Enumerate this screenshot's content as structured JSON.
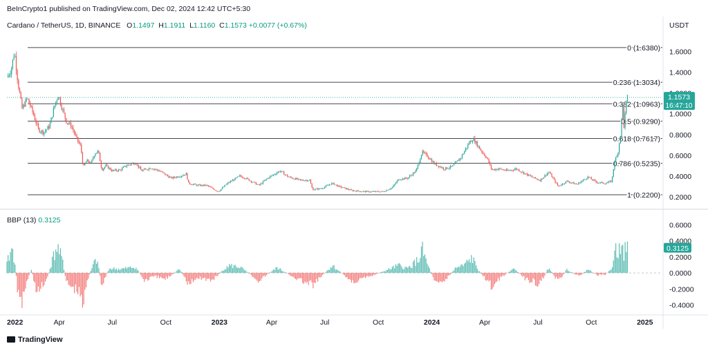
{
  "header": {
    "published": "BeInCrypto1 published on TradingView.com, Dec 02, 2024 12:42 UTC+5:30",
    "symbol": "Cardano / TetherUS, 1D, BINANCE",
    "ohlc": [
      {
        "k": "O",
        "v": "1.1497"
      },
      {
        "k": "H",
        "v": "1.1911"
      },
      {
        "k": "L",
        "v": "1.1160"
      },
      {
        "k": "C",
        "v": "1.1573"
      }
    ],
    "change": "+0.0077 (+0.67%)",
    "currency": "USDT"
  },
  "indicator": {
    "name": "BBP (13)",
    "value": "0.3125"
  },
  "footer": {
    "brand": "TradingView"
  },
  "colors": {
    "up": "#26a69a",
    "down": "#ef5350",
    "badge": "#26a69a",
    "text": "#131722"
  },
  "chart_data": [
    {
      "type": "candlestick",
      "title": "Cardano / TetherUS, 1D, BINANCE",
      "ylim": [
        0.12,
        1.75
      ],
      "y_ticks": [
        "1.6000",
        "1.4000",
        "1.2000",
        "1.0000",
        "0.8000",
        "0.6000",
        "0.4000",
        "0.2000"
      ],
      "y_tick_values": [
        1.6,
        1.4,
        1.2,
        1.0,
        0.8,
        0.6,
        0.4,
        0.2
      ],
      "x_ticks": [
        "2022",
        "Apr",
        "Jul",
        "Oct",
        "2023",
        "Apr",
        "Jul",
        "Oct",
        "2024",
        "Apr",
        "Jul",
        "Oct",
        "2025"
      ],
      "x_tick_bold": [
        true,
        false,
        false,
        false,
        true,
        false,
        false,
        false,
        true,
        false,
        false,
        false,
        true
      ],
      "x_range": [
        "2022-01-01",
        "2025-01-31"
      ],
      "last_price": {
        "value": 1.1573,
        "label": "1.1573",
        "countdown": "16:47:10"
      },
      "fib_levels": [
        {
          "ratio": 0,
          "value": 1.638,
          "label": "0 (1.6380)"
        },
        {
          "ratio": 0.236,
          "value": 1.3034,
          "label": "0.236 (1.3034)"
        },
        {
          "ratio": 0.382,
          "value": 1.0963,
          "label": "0.382 (1.0963)"
        },
        {
          "ratio": 0.5,
          "value": 0.929,
          "label": "0.5 (0.9290)"
        },
        {
          "ratio": 0.618,
          "value": 0.7617,
          "label": "0.618 (0.7617)"
        },
        {
          "ratio": 0.786,
          "value": 0.5235,
          "label": "0.786 (0.5235)"
        },
        {
          "ratio": 1,
          "value": 0.22,
          "label": "1 (0.2200)"
        }
      ],
      "close_path": [
        [
          "2022-01-01",
          1.35
        ],
        [
          "2022-01-08",
          1.42
        ],
        [
          "2022-01-14",
          1.6
        ],
        [
          "2022-01-20",
          1.3
        ],
        [
          "2022-01-27",
          1.05
        ],
        [
          "2022-02-05",
          1.15
        ],
        [
          "2022-02-14",
          1.02
        ],
        [
          "2022-02-24",
          0.85
        ],
        [
          "2022-03-05",
          0.82
        ],
        [
          "2022-03-15",
          0.88
        ],
        [
          "2022-03-25",
          1.1
        ],
        [
          "2022-03-30",
          1.18
        ],
        [
          "2022-04-06",
          1.05
        ],
        [
          "2022-04-13",
          0.93
        ],
        [
          "2022-04-22",
          0.88
        ],
        [
          "2022-04-30",
          0.77
        ],
        [
          "2022-05-08",
          0.68
        ],
        [
          "2022-05-12",
          0.48
        ],
        [
          "2022-05-18",
          0.55
        ],
        [
          "2022-05-25",
          0.52
        ],
        [
          "2022-06-01",
          0.62
        ],
        [
          "2022-06-07",
          0.64
        ],
        [
          "2022-06-13",
          0.46
        ],
        [
          "2022-06-20",
          0.5
        ],
        [
          "2022-07-01",
          0.45
        ],
        [
          "2022-07-15",
          0.46
        ],
        [
          "2022-07-25",
          0.5
        ],
        [
          "2022-08-10",
          0.53
        ],
        [
          "2022-08-20",
          0.45
        ],
        [
          "2022-09-05",
          0.48
        ],
        [
          "2022-09-20",
          0.45
        ],
        [
          "2022-10-10",
          0.38
        ],
        [
          "2022-10-25",
          0.4
        ],
        [
          "2022-11-05",
          0.42
        ],
        [
          "2022-11-09",
          0.33
        ],
        [
          "2022-11-25",
          0.31
        ],
        [
          "2022-12-10",
          0.31
        ],
        [
          "2022-12-30",
          0.25
        ],
        [
          "2023-01-15",
          0.33
        ],
        [
          "2023-02-05",
          0.4
        ],
        [
          "2023-02-15",
          0.38
        ],
        [
          "2023-03-10",
          0.31
        ],
        [
          "2023-03-25",
          0.38
        ],
        [
          "2023-04-15",
          0.45
        ],
        [
          "2023-04-30",
          0.39
        ],
        [
          "2023-05-20",
          0.36
        ],
        [
          "2023-06-05",
          0.36
        ],
        [
          "2023-06-10",
          0.27
        ],
        [
          "2023-06-25",
          0.28
        ],
        [
          "2023-07-14",
          0.33
        ],
        [
          "2023-07-25",
          0.3
        ],
        [
          "2023-08-17",
          0.26
        ],
        [
          "2023-09-10",
          0.25
        ],
        [
          "2023-10-10",
          0.25
        ],
        [
          "2023-10-25",
          0.29
        ],
        [
          "2023-11-05",
          0.37
        ],
        [
          "2023-11-20",
          0.38
        ],
        [
          "2023-12-05",
          0.45
        ],
        [
          "2023-12-15",
          0.63
        ],
        [
          "2023-12-25",
          0.59
        ],
        [
          "2024-01-05",
          0.52
        ],
        [
          "2024-01-22",
          0.47
        ],
        [
          "2024-02-05",
          0.49
        ],
        [
          "2024-02-20",
          0.58
        ],
        [
          "2024-03-05",
          0.72
        ],
        [
          "2024-03-12",
          0.76
        ],
        [
          "2024-03-25",
          0.65
        ],
        [
          "2024-04-05",
          0.57
        ],
        [
          "2024-04-13",
          0.46
        ],
        [
          "2024-04-25",
          0.47
        ],
        [
          "2024-05-10",
          0.45
        ],
        [
          "2024-05-25",
          0.47
        ],
        [
          "2024-06-10",
          0.42
        ],
        [
          "2024-06-25",
          0.38
        ],
        [
          "2024-07-05",
          0.36
        ],
        [
          "2024-07-20",
          0.44
        ],
        [
          "2024-08-05",
          0.3
        ],
        [
          "2024-08-20",
          0.35
        ],
        [
          "2024-09-06",
          0.32
        ],
        [
          "2024-09-25",
          0.39
        ],
        [
          "2024-10-10",
          0.34
        ],
        [
          "2024-10-25",
          0.33
        ],
        [
          "2024-11-05",
          0.35
        ],
        [
          "2024-11-10",
          0.55
        ],
        [
          "2024-11-15",
          0.6
        ],
        [
          "2024-11-20",
          0.8
        ],
        [
          "2024-11-24",
          1.08
        ],
        [
          "2024-11-26",
          0.88
        ],
        [
          "2024-11-30",
          1.1
        ],
        [
          "2024-12-02",
          1.1573
        ]
      ]
    },
    {
      "type": "bar",
      "title": "BBP (13)",
      "ylim": [
        -0.48,
        0.68
      ],
      "y_ticks": [
        "0.6000",
        "0.4000",
        "0.2000",
        "0.0000",
        "-0.2000",
        "-0.4000"
      ],
      "y_tick_values": [
        0.6,
        0.4,
        0.2,
        0.0,
        -0.2,
        -0.4
      ],
      "last_value": {
        "value": 0.3125,
        "label": "0.3125"
      },
      "bbp_path": [
        [
          "2022-01-01",
          0.12
        ],
        [
          "2022-01-06",
          0.25
        ],
        [
          "2022-01-10",
          0.32
        ],
        [
          "2022-01-15",
          0.15
        ],
        [
          "2022-01-20",
          -0.3
        ],
        [
          "2022-01-25",
          -0.44
        ],
        [
          "2022-02-01",
          -0.2
        ],
        [
          "2022-02-12",
          0.05
        ],
        [
          "2022-02-22",
          -0.28
        ],
        [
          "2022-03-05",
          -0.15
        ],
        [
          "2022-03-12",
          -0.05
        ],
        [
          "2022-03-22",
          0.22
        ],
        [
          "2022-03-28",
          0.35
        ],
        [
          "2022-04-06",
          0.18
        ],
        [
          "2022-04-12",
          -0.1
        ],
        [
          "2022-04-20",
          -0.18
        ],
        [
          "2022-04-30",
          -0.22
        ],
        [
          "2022-05-07",
          -0.3
        ],
        [
          "2022-05-12",
          -0.42
        ],
        [
          "2022-05-20",
          -0.08
        ],
        [
          "2022-05-30",
          0.12
        ],
        [
          "2022-06-05",
          0.18
        ],
        [
          "2022-06-13",
          -0.18
        ],
        [
          "2022-06-25",
          0.06
        ],
        [
          "2022-07-15",
          0.05
        ],
        [
          "2022-08-10",
          0.08
        ],
        [
          "2022-08-25",
          -0.1
        ],
        [
          "2022-09-10",
          -0.05
        ],
        [
          "2022-10-01",
          -0.08
        ],
        [
          "2022-10-25",
          0.05
        ],
        [
          "2022-11-09",
          -0.16
        ],
        [
          "2022-11-25",
          -0.06
        ],
        [
          "2022-12-20",
          -0.1
        ],
        [
          "2023-01-15",
          0.1
        ],
        [
          "2023-02-05",
          0.08
        ],
        [
          "2023-03-10",
          -0.1
        ],
        [
          "2023-04-10",
          0.07
        ],
        [
          "2023-05-10",
          -0.06
        ],
        [
          "2023-06-10",
          -0.17
        ],
        [
          "2023-07-14",
          0.1
        ],
        [
          "2023-08-17",
          -0.12
        ],
        [
          "2023-09-15",
          -0.05
        ],
        [
          "2023-10-20",
          0.05
        ],
        [
          "2023-11-05",
          0.1
        ],
        [
          "2023-11-20",
          0.06
        ],
        [
          "2023-12-10",
          0.18
        ],
        [
          "2023-12-15",
          0.32
        ],
        [
          "2023-12-25",
          0.1
        ],
        [
          "2024-01-05",
          -0.08
        ],
        [
          "2024-01-22",
          -0.12
        ],
        [
          "2024-02-10",
          0.06
        ],
        [
          "2024-02-25",
          0.1
        ],
        [
          "2024-03-10",
          0.2
        ],
        [
          "2024-03-20",
          0.05
        ],
        [
          "2024-04-05",
          -0.1
        ],
        [
          "2024-04-15",
          -0.2
        ],
        [
          "2024-05-01",
          -0.05
        ],
        [
          "2024-05-20",
          0.06
        ],
        [
          "2024-06-10",
          -0.08
        ],
        [
          "2024-07-05",
          -0.15
        ],
        [
          "2024-07-20",
          0.08
        ],
        [
          "2024-08-05",
          -0.13
        ],
        [
          "2024-08-20",
          0.05
        ],
        [
          "2024-09-10",
          -0.05
        ],
        [
          "2024-09-25",
          0.05
        ],
        [
          "2024-10-10",
          -0.03
        ],
        [
          "2024-10-25",
          -0.02
        ],
        [
          "2024-11-05",
          0.05
        ],
        [
          "2024-11-10",
          0.32
        ],
        [
          "2024-11-15",
          0.25
        ],
        [
          "2024-11-20",
          0.38
        ],
        [
          "2024-11-24",
          0.62
        ],
        [
          "2024-11-26",
          0.22
        ],
        [
          "2024-11-30",
          0.4
        ],
        [
          "2024-12-02",
          0.3125
        ]
      ]
    }
  ]
}
